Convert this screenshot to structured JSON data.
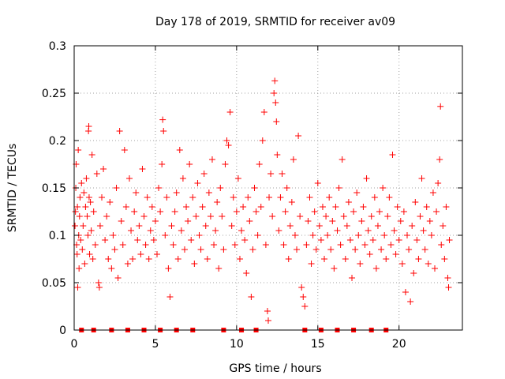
{
  "chart_data": {
    "type": "scatter",
    "title": "Day 178 of 2019, SRMTID for receiver av09",
    "xlabel": "GPS time / hours",
    "ylabel": "SRMTID / TECUs",
    "xlim": [
      0,
      23.9
    ],
    "ylim": [
      0,
      0.3
    ],
    "xticks": [
      0,
      5,
      10,
      15,
      20
    ],
    "xtick_labels": [
      "0",
      "5",
      "10",
      "15",
      "20"
    ],
    "yticks": [
      0,
      0.05,
      0.1,
      0.15,
      0.2,
      0.25,
      0.3
    ],
    "ytick_labels": [
      "0",
      "0.05",
      "0.1",
      "0.15",
      "0.2",
      "0.25",
      "0.3"
    ],
    "grid": true,
    "marker": "plus",
    "series": [
      {
        "name": "SRMTID",
        "color": "#ff0000",
        "points": [
          [
            0.05,
            0.11
          ],
          [
            0.08,
            0.125
          ],
          [
            0.1,
            0.15
          ],
          [
            0.12,
            0.175
          ],
          [
            0.15,
            0.09
          ],
          [
            0.18,
            0.08
          ],
          [
            0.2,
            0.13
          ],
          [
            0.22,
            0.045
          ],
          [
            0.25,
            0.19
          ],
          [
            0.28,
            0.1
          ],
          [
            0.3,
            0.065
          ],
          [
            0.33,
            0.12
          ],
          [
            0.36,
            0.14
          ],
          [
            0.4,
            0.095
          ],
          [
            0.45,
            0.155
          ],
          [
            0.5,
            0.085
          ],
          [
            0.55,
            0.11
          ],
          [
            0.6,
            0.145
          ],
          [
            0.65,
            0.07
          ],
          [
            0.7,
            0.13
          ],
          [
            0.75,
            0.16
          ],
          [
            0.8,
            0.12
          ],
          [
            0.85,
            0.1
          ],
          [
            0.88,
            0.21
          ],
          [
            0.9,
            0.215
          ],
          [
            0.92,
            0.14
          ],
          [
            0.95,
            0.08
          ],
          [
            1.0,
            0.135
          ],
          [
            1.05,
            0.105
          ],
          [
            1.1,
            0.185
          ],
          [
            1.15,
            0.075
          ],
          [
            1.2,
            0.125
          ],
          [
            1.3,
            0.09
          ],
          [
            1.4,
            0.165
          ],
          [
            1.5,
            0.05
          ],
          [
            1.55,
            0.045
          ],
          [
            1.6,
            0.11
          ],
          [
            1.7,
            0.14
          ],
          [
            1.8,
            0.17
          ],
          [
            1.9,
            0.095
          ],
          [
            2.0,
            0.12
          ],
          [
            2.1,
            0.075
          ],
          [
            2.2,
            0.135
          ],
          [
            2.3,
            0.065
          ],
          [
            2.4,
            0.1
          ],
          [
            2.5,
            0.085
          ],
          [
            2.6,
            0.15
          ],
          [
            2.7,
            0.055
          ],
          [
            2.8,
            0.21
          ],
          [
            2.9,
            0.115
          ],
          [
            3.0,
            0.09
          ],
          [
            3.1,
            0.19
          ],
          [
            3.2,
            0.13
          ],
          [
            3.3,
            0.07
          ],
          [
            3.4,
            0.16
          ],
          [
            3.5,
            0.105
          ],
          [
            3.6,
            0.075
          ],
          [
            3.7,
            0.125
          ],
          [
            3.8,
            0.145
          ],
          [
            3.9,
            0.095
          ],
          [
            4.0,
            0.11
          ],
          [
            4.1,
            0.08
          ],
          [
            4.2,
            0.17
          ],
          [
            4.3,
            0.12
          ],
          [
            4.4,
            0.09
          ],
          [
            4.5,
            0.14
          ],
          [
            4.6,
            0.075
          ],
          [
            4.7,
            0.105
          ],
          [
            4.8,
            0.13
          ],
          [
            4.9,
            0.095
          ],
          [
            5.0,
            0.115
          ],
          [
            5.1,
            0.08
          ],
          [
            5.2,
            0.15
          ],
          [
            5.3,
            0.125
          ],
          [
            5.4,
            0.175
          ],
          [
            5.45,
            0.222
          ],
          [
            5.5,
            0.21
          ],
          [
            5.6,
            0.1
          ],
          [
            5.7,
            0.14
          ],
          [
            5.8,
            0.065
          ],
          [
            5.9,
            0.035
          ],
          [
            6.0,
            0.11
          ],
          [
            6.1,
            0.09
          ],
          [
            6.2,
            0.125
          ],
          [
            6.3,
            0.145
          ],
          [
            6.4,
            0.075
          ],
          [
            6.5,
            0.19
          ],
          [
            6.6,
            0.105
          ],
          [
            6.7,
            0.16
          ],
          [
            6.8,
            0.085
          ],
          [
            6.9,
            0.13
          ],
          [
            7.0,
            0.115
          ],
          [
            7.1,
            0.175
          ],
          [
            7.2,
            0.095
          ],
          [
            7.3,
            0.14
          ],
          [
            7.4,
            0.07
          ],
          [
            7.5,
            0.12
          ],
          [
            7.6,
            0.155
          ],
          [
            7.7,
            0.1
          ],
          [
            7.8,
            0.085
          ],
          [
            7.9,
            0.13
          ],
          [
            8.0,
            0.165
          ],
          [
            8.1,
            0.11
          ],
          [
            8.2,
            0.075
          ],
          [
            8.3,
            0.145
          ],
          [
            8.4,
            0.12
          ],
          [
            8.5,
            0.18
          ],
          [
            8.6,
            0.09
          ],
          [
            8.7,
            0.105
          ],
          [
            8.8,
            0.135
          ],
          [
            8.9,
            0.065
          ],
          [
            9.0,
            0.15
          ],
          [
            9.1,
            0.12
          ],
          [
            9.2,
            0.085
          ],
          [
            9.3,
            0.175
          ],
          [
            9.4,
            0.2
          ],
          [
            9.5,
            0.195
          ],
          [
            9.6,
            0.23
          ],
          [
            9.7,
            0.11
          ],
          [
            9.8,
            0.14
          ],
          [
            9.9,
            0.09
          ],
          [
            10.0,
            0.125
          ],
          [
            10.1,
            0.16
          ],
          [
            10.2,
            0.075
          ],
          [
            10.3,
            0.105
          ],
          [
            10.4,
            0.13
          ],
          [
            10.5,
            0.095
          ],
          [
            10.6,
            0.06
          ],
          [
            10.7,
            0.14
          ],
          [
            10.8,
            0.115
          ],
          [
            10.9,
            0.035
          ],
          [
            11.0,
            0.085
          ],
          [
            11.1,
            0.15
          ],
          [
            11.2,
            0.125
          ],
          [
            11.3,
            0.1
          ],
          [
            11.4,
            0.175
          ],
          [
            11.5,
            0.13
          ],
          [
            11.6,
            0.2
          ],
          [
            11.7,
            0.23
          ],
          [
            11.8,
            0.09
          ],
          [
            11.9,
            0.02
          ],
          [
            11.95,
            0.01
          ],
          [
            12.0,
            0.14
          ],
          [
            12.1,
            0.165
          ],
          [
            12.2,
            0.12
          ],
          [
            12.3,
            0.25
          ],
          [
            12.35,
            0.263
          ],
          [
            12.4,
            0.24
          ],
          [
            12.45,
            0.22
          ],
          [
            12.5,
            0.185
          ],
          [
            12.6,
            0.105
          ],
          [
            12.7,
            0.14
          ],
          [
            12.8,
            0.165
          ],
          [
            12.9,
            0.09
          ],
          [
            13.0,
            0.125
          ],
          [
            13.1,
            0.15
          ],
          [
            13.2,
            0.075
          ],
          [
            13.3,
            0.11
          ],
          [
            13.4,
            0.135
          ],
          [
            13.5,
            0.18
          ],
          [
            13.6,
            0.1
          ],
          [
            13.7,
            0.085
          ],
          [
            13.8,
            0.205
          ],
          [
            13.9,
            0.12
          ],
          [
            14.0,
            0.045
          ],
          [
            14.1,
            0.035
          ],
          [
            14.2,
            0.025
          ],
          [
            14.3,
            0.09
          ],
          [
            14.4,
            0.115
          ],
          [
            14.5,
            0.14
          ],
          [
            14.6,
            0.07
          ],
          [
            14.7,
            0.1
          ],
          [
            14.8,
            0.125
          ],
          [
            14.9,
            0.085
          ],
          [
            15.0,
            0.155
          ],
          [
            15.1,
            0.11
          ],
          [
            15.2,
            0.095
          ],
          [
            15.3,
            0.13
          ],
          [
            15.4,
            0.075
          ],
          [
            15.5,
            0.12
          ],
          [
            15.6,
            0.1
          ],
          [
            15.7,
            0.14
          ],
          [
            15.8,
            0.085
          ],
          [
            15.9,
            0.115
          ],
          [
            16.0,
            0.065
          ],
          [
            16.1,
            0.13
          ],
          [
            16.2,
            0.105
          ],
          [
            16.3,
            0.15
          ],
          [
            16.4,
            0.09
          ],
          [
            16.5,
            0.18
          ],
          [
            16.6,
            0.12
          ],
          [
            16.7,
            0.075
          ],
          [
            16.8,
            0.11
          ],
          [
            16.9,
            0.135
          ],
          [
            17.0,
            0.095
          ],
          [
            17.1,
            0.055
          ],
          [
            17.2,
            0.125
          ],
          [
            17.3,
            0.085
          ],
          [
            17.4,
            0.145
          ],
          [
            17.5,
            0.1
          ],
          [
            17.6,
            0.07
          ],
          [
            17.7,
            0.115
          ],
          [
            17.8,
            0.13
          ],
          [
            17.9,
            0.09
          ],
          [
            18.0,
            0.16
          ],
          [
            18.1,
            0.105
          ],
          [
            18.2,
            0.08
          ],
          [
            18.3,
            0.12
          ],
          [
            18.4,
            0.095
          ],
          [
            18.5,
            0.14
          ],
          [
            18.6,
            0.065
          ],
          [
            18.7,
            0.11
          ],
          [
            18.8,
            0.125
          ],
          [
            18.9,
            0.085
          ],
          [
            19.0,
            0.15
          ],
          [
            19.1,
            0.1
          ],
          [
            19.2,
            0.075
          ],
          [
            19.3,
            0.12
          ],
          [
            19.4,
            0.14
          ],
          [
            19.5,
            0.09
          ],
          [
            19.6,
            0.185
          ],
          [
            19.7,
            0.105
          ],
          [
            19.8,
            0.08
          ],
          [
            19.9,
            0.13
          ],
          [
            20.0,
            0.095
          ],
          [
            20.1,
            0.115
          ],
          [
            20.2,
            0.07
          ],
          [
            20.3,
            0.125
          ],
          [
            20.4,
            0.04
          ],
          [
            20.5,
            0.1
          ],
          [
            20.6,
            0.085
          ],
          [
            20.7,
            0.03
          ],
          [
            20.8,
            0.11
          ],
          [
            20.9,
            0.06
          ],
          [
            21.0,
            0.135
          ],
          [
            21.1,
            0.095
          ],
          [
            21.2,
            0.075
          ],
          [
            21.3,
            0.12
          ],
          [
            21.4,
            0.16
          ],
          [
            21.5,
            0.105
          ],
          [
            21.6,
            0.085
          ],
          [
            21.7,
            0.13
          ],
          [
            21.8,
            0.07
          ],
          [
            21.9,
            0.115
          ],
          [
            22.0,
            0.1
          ],
          [
            22.1,
            0.145
          ],
          [
            22.2,
            0.065
          ],
          [
            22.3,
            0.125
          ],
          [
            22.4,
            0.155
          ],
          [
            22.5,
            0.18
          ],
          [
            22.55,
            0.236
          ],
          [
            22.6,
            0.09
          ],
          [
            22.7,
            0.11
          ],
          [
            22.8,
            0.075
          ],
          [
            22.9,
            0.13
          ],
          [
            23.0,
            0.055
          ],
          [
            23.05,
            0.045
          ],
          [
            23.1,
            0.095
          ]
        ],
        "zero_points": [
          0.45,
          1.2,
          2.3,
          3.3,
          4.3,
          5.3,
          6.3,
          7.3,
          9.2,
          10.3,
          11.2,
          14.2,
          15.2,
          16.2,
          17.2,
          18.3,
          19.2
        ]
      }
    ]
  }
}
